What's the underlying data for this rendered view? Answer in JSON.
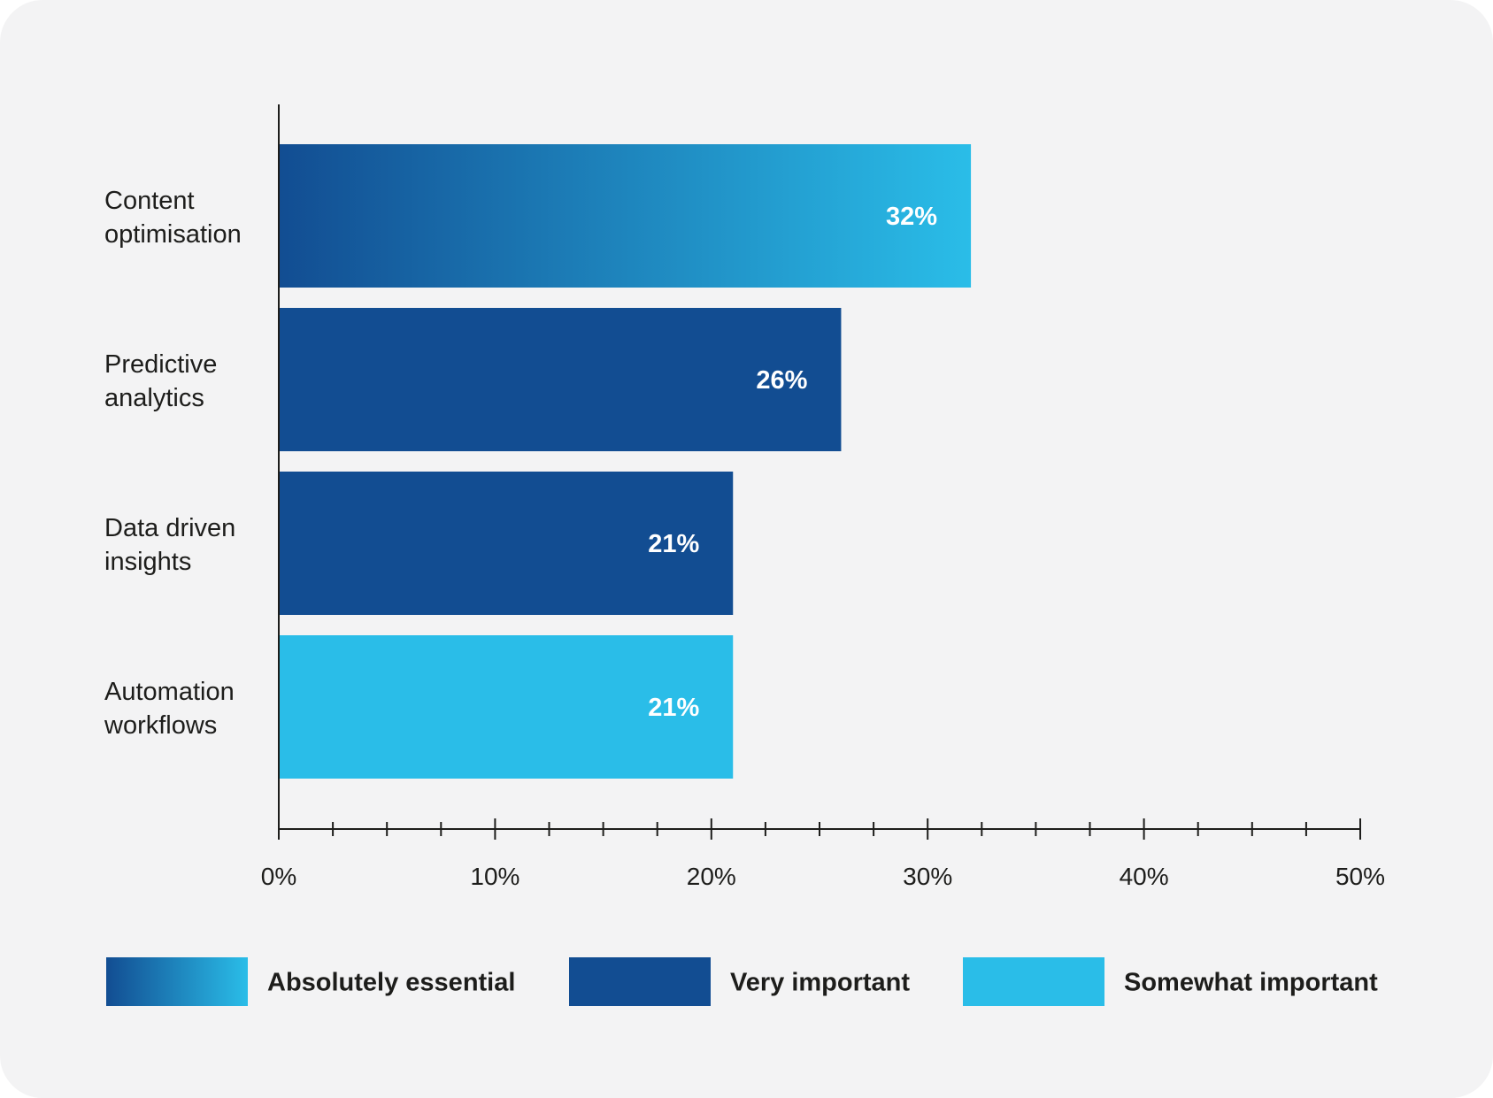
{
  "chart_data": {
    "type": "bar",
    "orientation": "horizontal",
    "categories": [
      [
        "Content",
        "optimisation"
      ],
      [
        "Predictive",
        "analytics"
      ],
      [
        "Data driven",
        "insights"
      ],
      [
        "Automation",
        "workflows"
      ]
    ],
    "values": [
      32,
      26,
      21,
      21
    ],
    "value_labels": [
      "32%",
      "26%",
      "21%",
      "21%"
    ],
    "bar_categories": [
      "Absolutely essential",
      "Very important",
      "Very important",
      "Somewhat important"
    ],
    "xlim": [
      0,
      50
    ],
    "x_ticks": [
      0,
      10,
      20,
      30,
      40,
      50
    ],
    "x_tick_labels": [
      "0%",
      "10%",
      "20%",
      "30%",
      "40%",
      "50%"
    ],
    "minor_tick_step": 2.5,
    "grid": false,
    "legend_position": "bottom",
    "legend": [
      {
        "key": "essential",
        "label": "Absolutely essential"
      },
      {
        "key": "very",
        "label": "Very important"
      },
      {
        "key": "somewhat",
        "label": "Somewhat important"
      }
    ],
    "colors": {
      "essential_start": "#124d92",
      "essential_end": "#2abde8",
      "very": "#124d92",
      "somewhat": "#2abde8",
      "axis": "#1d1d1b"
    }
  }
}
